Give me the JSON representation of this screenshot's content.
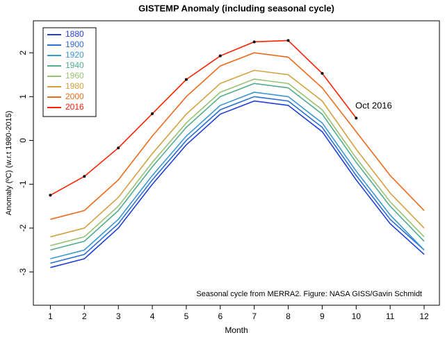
{
  "chart_data": {
    "type": "line",
    "title": "GISTEMP Anomaly (including seasonal cycle)",
    "xlabel": "Month",
    "ylabel": "Anomaly (ºC) (w.r.t 1980-2015)",
    "annotation": "Oct 2016",
    "caption": "Seasonal cycle from MERRA2. Figure: NASA GISS/Gavin Schmidt",
    "x": [
      1,
      2,
      3,
      4,
      5,
      6,
      7,
      8,
      9,
      10,
      11,
      12
    ],
    "xlim": [
      0.5,
      12.45
    ],
    "xticks": [
      1,
      2,
      3,
      4,
      5,
      6,
      7,
      8,
      9,
      10,
      11,
      12
    ],
    "ylim": [
      -3.76,
      2.73
    ],
    "yticks": [
      -3,
      -2,
      -1,
      0,
      1,
      2
    ],
    "legend": "top-left",
    "series": [
      {
        "name": "1880",
        "color": "#1f3fd8",
        "values": [
          -2.9,
          -2.7,
          -2.0,
          -1.0,
          -0.1,
          0.6,
          0.9,
          0.8,
          0.2,
          -0.9,
          -1.9,
          -2.6
        ]
      },
      {
        "name": "1900",
        "color": "#2b6ed8",
        "values": [
          -2.8,
          -2.6,
          -1.9,
          -0.9,
          0.0,
          0.7,
          1.0,
          0.9,
          0.3,
          -0.8,
          -1.8,
          -2.5
        ]
      },
      {
        "name": "1920",
        "color": "#3a98d0",
        "values": [
          -2.7,
          -2.5,
          -1.8,
          -0.8,
          0.1,
          0.8,
          1.1,
          1.0,
          0.4,
          -0.7,
          -1.7,
          -2.5
        ]
      },
      {
        "name": "1940",
        "color": "#4fae8c",
        "values": [
          -2.5,
          -2.3,
          -1.6,
          -0.6,
          0.3,
          1.0,
          1.3,
          1.2,
          0.6,
          -0.5,
          -1.5,
          -2.3
        ]
      },
      {
        "name": "1960",
        "color": "#98c270",
        "values": [
          -2.4,
          -2.2,
          -1.5,
          -0.5,
          0.4,
          1.1,
          1.4,
          1.3,
          0.7,
          -0.4,
          -1.4,
          -2.2
        ]
      },
      {
        "name": "1980",
        "color": "#d4a040",
        "values": [
          -2.2,
          -2.0,
          -1.3,
          -0.3,
          0.6,
          1.3,
          1.6,
          1.5,
          0.9,
          -0.2,
          -1.2,
          -2.0
        ]
      },
      {
        "name": "2000",
        "color": "#ec6a1c",
        "values": [
          -1.8,
          -1.6,
          -0.9,
          0.1,
          1.0,
          1.7,
          2.0,
          1.9,
          1.2,
          0.2,
          -0.8,
          -1.6
        ]
      },
      {
        "name": "2016",
        "color": "#ff2000",
        "markers": true,
        "values": [
          -1.25,
          -0.82,
          -0.17,
          0.61,
          1.39,
          1.93,
          2.25,
          2.28,
          1.53,
          0.51,
          null,
          null
        ]
      }
    ]
  }
}
